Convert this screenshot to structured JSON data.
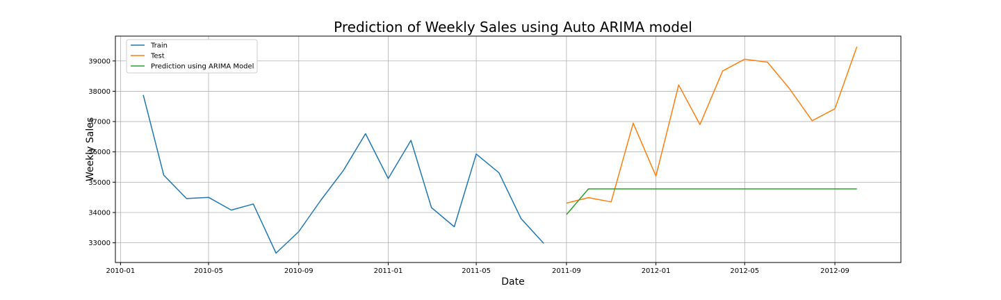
{
  "chart_data": {
    "type": "line",
    "title": "Prediction of Weekly Sales using Auto ARIMA model",
    "xlabel": "Date",
    "ylabel": "Weekly Sales",
    "x_ticks": [
      "2010-01",
      "2010-05",
      "2010-09",
      "2011-01",
      "2011-05",
      "2011-09",
      "2012-01",
      "2012-05",
      "2012-09"
    ],
    "y_ticks": [
      33000,
      34000,
      35000,
      36000,
      37000,
      38000,
      39000
    ],
    "xlim": [
      "2009-12-25",
      "2012-11-30"
    ],
    "ylim": [
      32350,
      39820
    ],
    "grid": true,
    "legend_position": "top-left",
    "series": [
      {
        "name": "Train",
        "color": "#1f77b4",
        "points": [
          [
            "2010-02-01",
            37880
          ],
          [
            "2010-03-01",
            35230
          ],
          [
            "2010-04-01",
            34460
          ],
          [
            "2010-05-01",
            34500
          ],
          [
            "2010-06-01",
            34080
          ],
          [
            "2010-07-01",
            34280
          ],
          [
            "2010-08-01",
            32660
          ],
          [
            "2010-09-01",
            33370
          ],
          [
            "2010-10-01",
            34400
          ],
          [
            "2010-11-01",
            35390
          ],
          [
            "2010-12-01",
            36600
          ],
          [
            "2011-01-01",
            35120
          ],
          [
            "2011-02-01",
            36380
          ],
          [
            "2011-03-01",
            34160
          ],
          [
            "2011-04-01",
            33530
          ],
          [
            "2011-05-01",
            35930
          ],
          [
            "2011-06-01",
            35310
          ],
          [
            "2011-07-01",
            33800
          ],
          [
            "2011-08-01",
            32980
          ]
        ]
      },
      {
        "name": "Test",
        "color": "#ff7f0e",
        "points": [
          [
            "2011-09-01",
            34310
          ],
          [
            "2011-10-01",
            34490
          ],
          [
            "2011-11-01",
            34350
          ],
          [
            "2011-12-01",
            36950
          ],
          [
            "2012-01-01",
            35200
          ],
          [
            "2012-02-01",
            38210
          ],
          [
            "2012-03-01",
            36900
          ],
          [
            "2012-04-01",
            38670
          ],
          [
            "2012-05-01",
            39060
          ],
          [
            "2012-06-01",
            38960
          ],
          [
            "2012-07-01",
            38090
          ],
          [
            "2012-08-01",
            37030
          ],
          [
            "2012-09-01",
            37420
          ],
          [
            "2012-10-01",
            39470
          ]
        ]
      },
      {
        "name": "Prediction using ARIMA Model",
        "color": "#2ca02c",
        "points": [
          [
            "2011-09-01",
            33930
          ],
          [
            "2011-10-01",
            34780
          ],
          [
            "2011-11-01",
            34780
          ],
          [
            "2011-12-01",
            34780
          ],
          [
            "2012-01-01",
            34780
          ],
          [
            "2012-02-01",
            34780
          ],
          [
            "2012-03-01",
            34780
          ],
          [
            "2012-04-01",
            34780
          ],
          [
            "2012-05-01",
            34780
          ],
          [
            "2012-06-01",
            34780
          ],
          [
            "2012-07-01",
            34780
          ],
          [
            "2012-08-01",
            34780
          ],
          [
            "2012-09-01",
            34780
          ],
          [
            "2012-10-01",
            34780
          ]
        ]
      }
    ]
  }
}
